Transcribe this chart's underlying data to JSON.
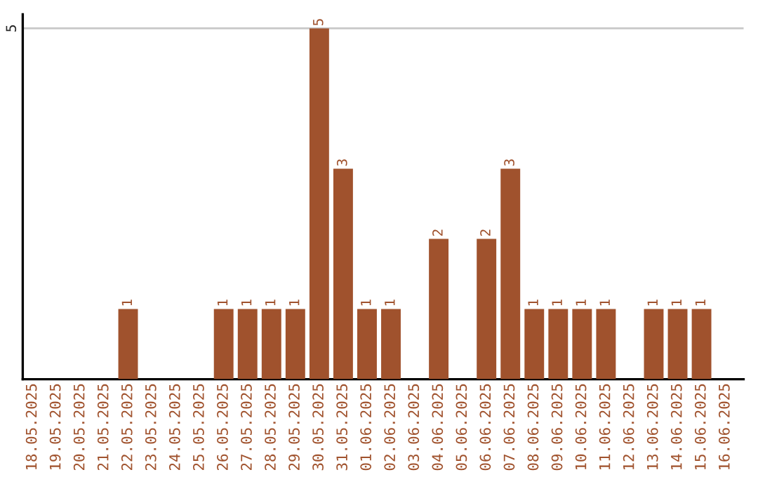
{
  "chart_data": {
    "type": "bar",
    "categories": [
      "18.05.2025",
      "19.05.2025",
      "20.05.2025",
      "21.05.2025",
      "22.05.2025",
      "23.05.2025",
      "24.05.2025",
      "25.05.2025",
      "26.05.2025",
      "27.05.2025",
      "28.05.2025",
      "29.05.2025",
      "30.05.2025",
      "31.05.2025",
      "01.06.2025",
      "02.06.2025",
      "03.06.2025",
      "04.06.2025",
      "05.06.2025",
      "06.06.2025",
      "07.06.2025",
      "08.06.2025",
      "09.06.2025",
      "10.06.2025",
      "11.06.2025",
      "12.06.2025",
      "13.06.2025",
      "14.06.2025",
      "15.06.2025",
      "16.06.2025"
    ],
    "values": [
      0,
      0,
      0,
      0,
      1,
      0,
      0,
      0,
      1,
      1,
      1,
      1,
      5,
      3,
      1,
      1,
      0,
      2,
      0,
      2,
      3,
      1,
      1,
      1,
      1,
      0,
      1,
      1,
      1,
      0
    ],
    "value_labels": [
      null,
      null,
      null,
      null,
      "1",
      null,
      null,
      null,
      "1",
      "1",
      "1",
      "1",
      "5",
      "3",
      "1",
      "1",
      null,
      "2",
      null,
      "2",
      "3",
      "1",
      "1",
      "1",
      "1",
      null,
      "1",
      "1",
      "1",
      null
    ],
    "color": "#a0522d",
    "ylim": [
      0,
      5.2
    ],
    "yticks": [
      5
    ],
    "grid": "y",
    "legend": false
  }
}
